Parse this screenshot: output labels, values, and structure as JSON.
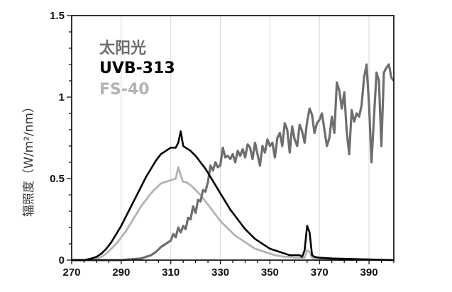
{
  "chart_data": {
    "type": "line",
    "title": "",
    "xlabel": "",
    "ylabel": "辐照度（W/m²/nm）",
    "xlim": [
      270,
      400
    ],
    "ylim": [
      0,
      1.5
    ],
    "xticks": [
      270,
      290,
      310,
      330,
      350,
      370,
      390
    ],
    "yticks": [
      0,
      0.5,
      1,
      1.5
    ],
    "ytick_labels": [
      "0",
      "0.5",
      "1",
      "1.5"
    ],
    "grid": "vertical",
    "legend": "top-left",
    "series": [
      {
        "name": "太阳光",
        "color": "#6e6e6e",
        "x": [
          270,
          290,
          298,
          302,
          304,
          306,
          308,
          310,
          311,
          312,
          313,
          314,
          315,
          316,
          317,
          318,
          319,
          320,
          321,
          322,
          323,
          324,
          325,
          326,
          327,
          328,
          329,
          330,
          331,
          332,
          333,
          334,
          335,
          336,
          337,
          338,
          339,
          340,
          341,
          342,
          343,
          344,
          345,
          346,
          347,
          348,
          349,
          350,
          351,
          352,
          353,
          354,
          355,
          356,
          357,
          358,
          359,
          360,
          361,
          362,
          363,
          364,
          365,
          366,
          367,
          368,
          369,
          370,
          371,
          372,
          373,
          374,
          375,
          376,
          377,
          378,
          379,
          380,
          381,
          382,
          383,
          384,
          385,
          386,
          387,
          388,
          389,
          390,
          391,
          392,
          393,
          394,
          395,
          396,
          397,
          398,
          399,
          400
        ],
        "values": [
          0.0,
          0.0,
          0.01,
          0.03,
          0.05,
          0.08,
          0.1,
          0.12,
          0.16,
          0.14,
          0.2,
          0.17,
          0.21,
          0.19,
          0.26,
          0.25,
          0.33,
          0.29,
          0.37,
          0.36,
          0.43,
          0.42,
          0.48,
          0.58,
          0.55,
          0.6,
          0.57,
          0.58,
          0.69,
          0.63,
          0.64,
          0.62,
          0.65,
          0.6,
          0.67,
          0.64,
          0.68,
          0.63,
          0.71,
          0.69,
          0.62,
          0.72,
          0.65,
          0.58,
          0.7,
          0.66,
          0.74,
          0.7,
          0.72,
          0.63,
          0.75,
          0.78,
          0.7,
          0.84,
          0.8,
          0.66,
          0.82,
          0.74,
          0.7,
          0.83,
          0.79,
          0.72,
          0.85,
          0.93,
          0.89,
          0.78,
          0.84,
          0.86,
          0.9,
          0.8,
          0.7,
          0.75,
          0.88,
          0.78,
          1.09,
          1.04,
          0.93,
          1.03,
          0.79,
          0.65,
          0.92,
          0.85,
          0.9,
          0.88,
          0.95,
          1.12,
          1.2,
          0.95,
          0.6,
          0.88,
          1.15,
          1.1,
          0.7,
          1.15,
          1.18,
          1.2,
          1.12,
          1.1
        ]
      },
      {
        "name": "UVB-313",
        "color": "#000000",
        "x": [
          270,
          275,
          278,
          280,
          282,
          284,
          286,
          288,
          290,
          292,
          294,
          296,
          298,
          300,
          302,
          304,
          306,
          308,
          310,
          312,
          313,
          314,
          315,
          316,
          318,
          320,
          322,
          324,
          326,
          328,
          330,
          332,
          334,
          336,
          338,
          340,
          342,
          344,
          346,
          348,
          350,
          352,
          354,
          356,
          358,
          360,
          362,
          363,
          364,
          365,
          366,
          367,
          368,
          370,
          375,
          380,
          390,
          400
        ],
        "values": [
          0.0,
          0.0,
          0.01,
          0.02,
          0.04,
          0.07,
          0.11,
          0.16,
          0.21,
          0.27,
          0.33,
          0.39,
          0.45,
          0.51,
          0.56,
          0.61,
          0.65,
          0.67,
          0.69,
          0.69,
          0.72,
          0.79,
          0.7,
          0.69,
          0.67,
          0.64,
          0.6,
          0.56,
          0.51,
          0.46,
          0.41,
          0.36,
          0.31,
          0.27,
          0.23,
          0.19,
          0.16,
          0.13,
          0.11,
          0.09,
          0.07,
          0.06,
          0.05,
          0.04,
          0.03,
          0.03,
          0.03,
          0.02,
          0.06,
          0.21,
          0.17,
          0.03,
          0.02,
          0.015,
          0.01,
          0.008,
          0.004,
          0.0
        ]
      },
      {
        "name": "FS-40",
        "color": "#b3b3b3",
        "x": [
          270,
          278,
          280,
          282,
          284,
          286,
          288,
          290,
          292,
          294,
          296,
          298,
          300,
          302,
          304,
          306,
          308,
          310,
          312,
          313,
          314,
          315,
          316,
          318,
          320,
          322,
          324,
          326,
          328,
          330,
          332,
          334,
          336,
          338,
          340,
          342,
          344,
          346,
          348,
          350,
          352,
          354,
          356,
          358,
          360,
          362,
          364,
          365,
          366,
          367,
          368,
          370,
          375,
          380,
          390,
          400
        ],
        "values": [
          0.0,
          0.0,
          0.01,
          0.02,
          0.04,
          0.07,
          0.1,
          0.14,
          0.18,
          0.23,
          0.28,
          0.33,
          0.37,
          0.41,
          0.44,
          0.47,
          0.48,
          0.49,
          0.5,
          0.57,
          0.52,
          0.48,
          0.48,
          0.46,
          0.43,
          0.4,
          0.36,
          0.32,
          0.28,
          0.24,
          0.21,
          0.18,
          0.15,
          0.13,
          0.11,
          0.09,
          0.07,
          0.06,
          0.05,
          0.04,
          0.03,
          0.025,
          0.02,
          0.02,
          0.015,
          0.015,
          0.015,
          0.06,
          0.05,
          0.015,
          0.01,
          0.008,
          0.005,
          0.003,
          0.001,
          0.0
        ]
      }
    ]
  }
}
